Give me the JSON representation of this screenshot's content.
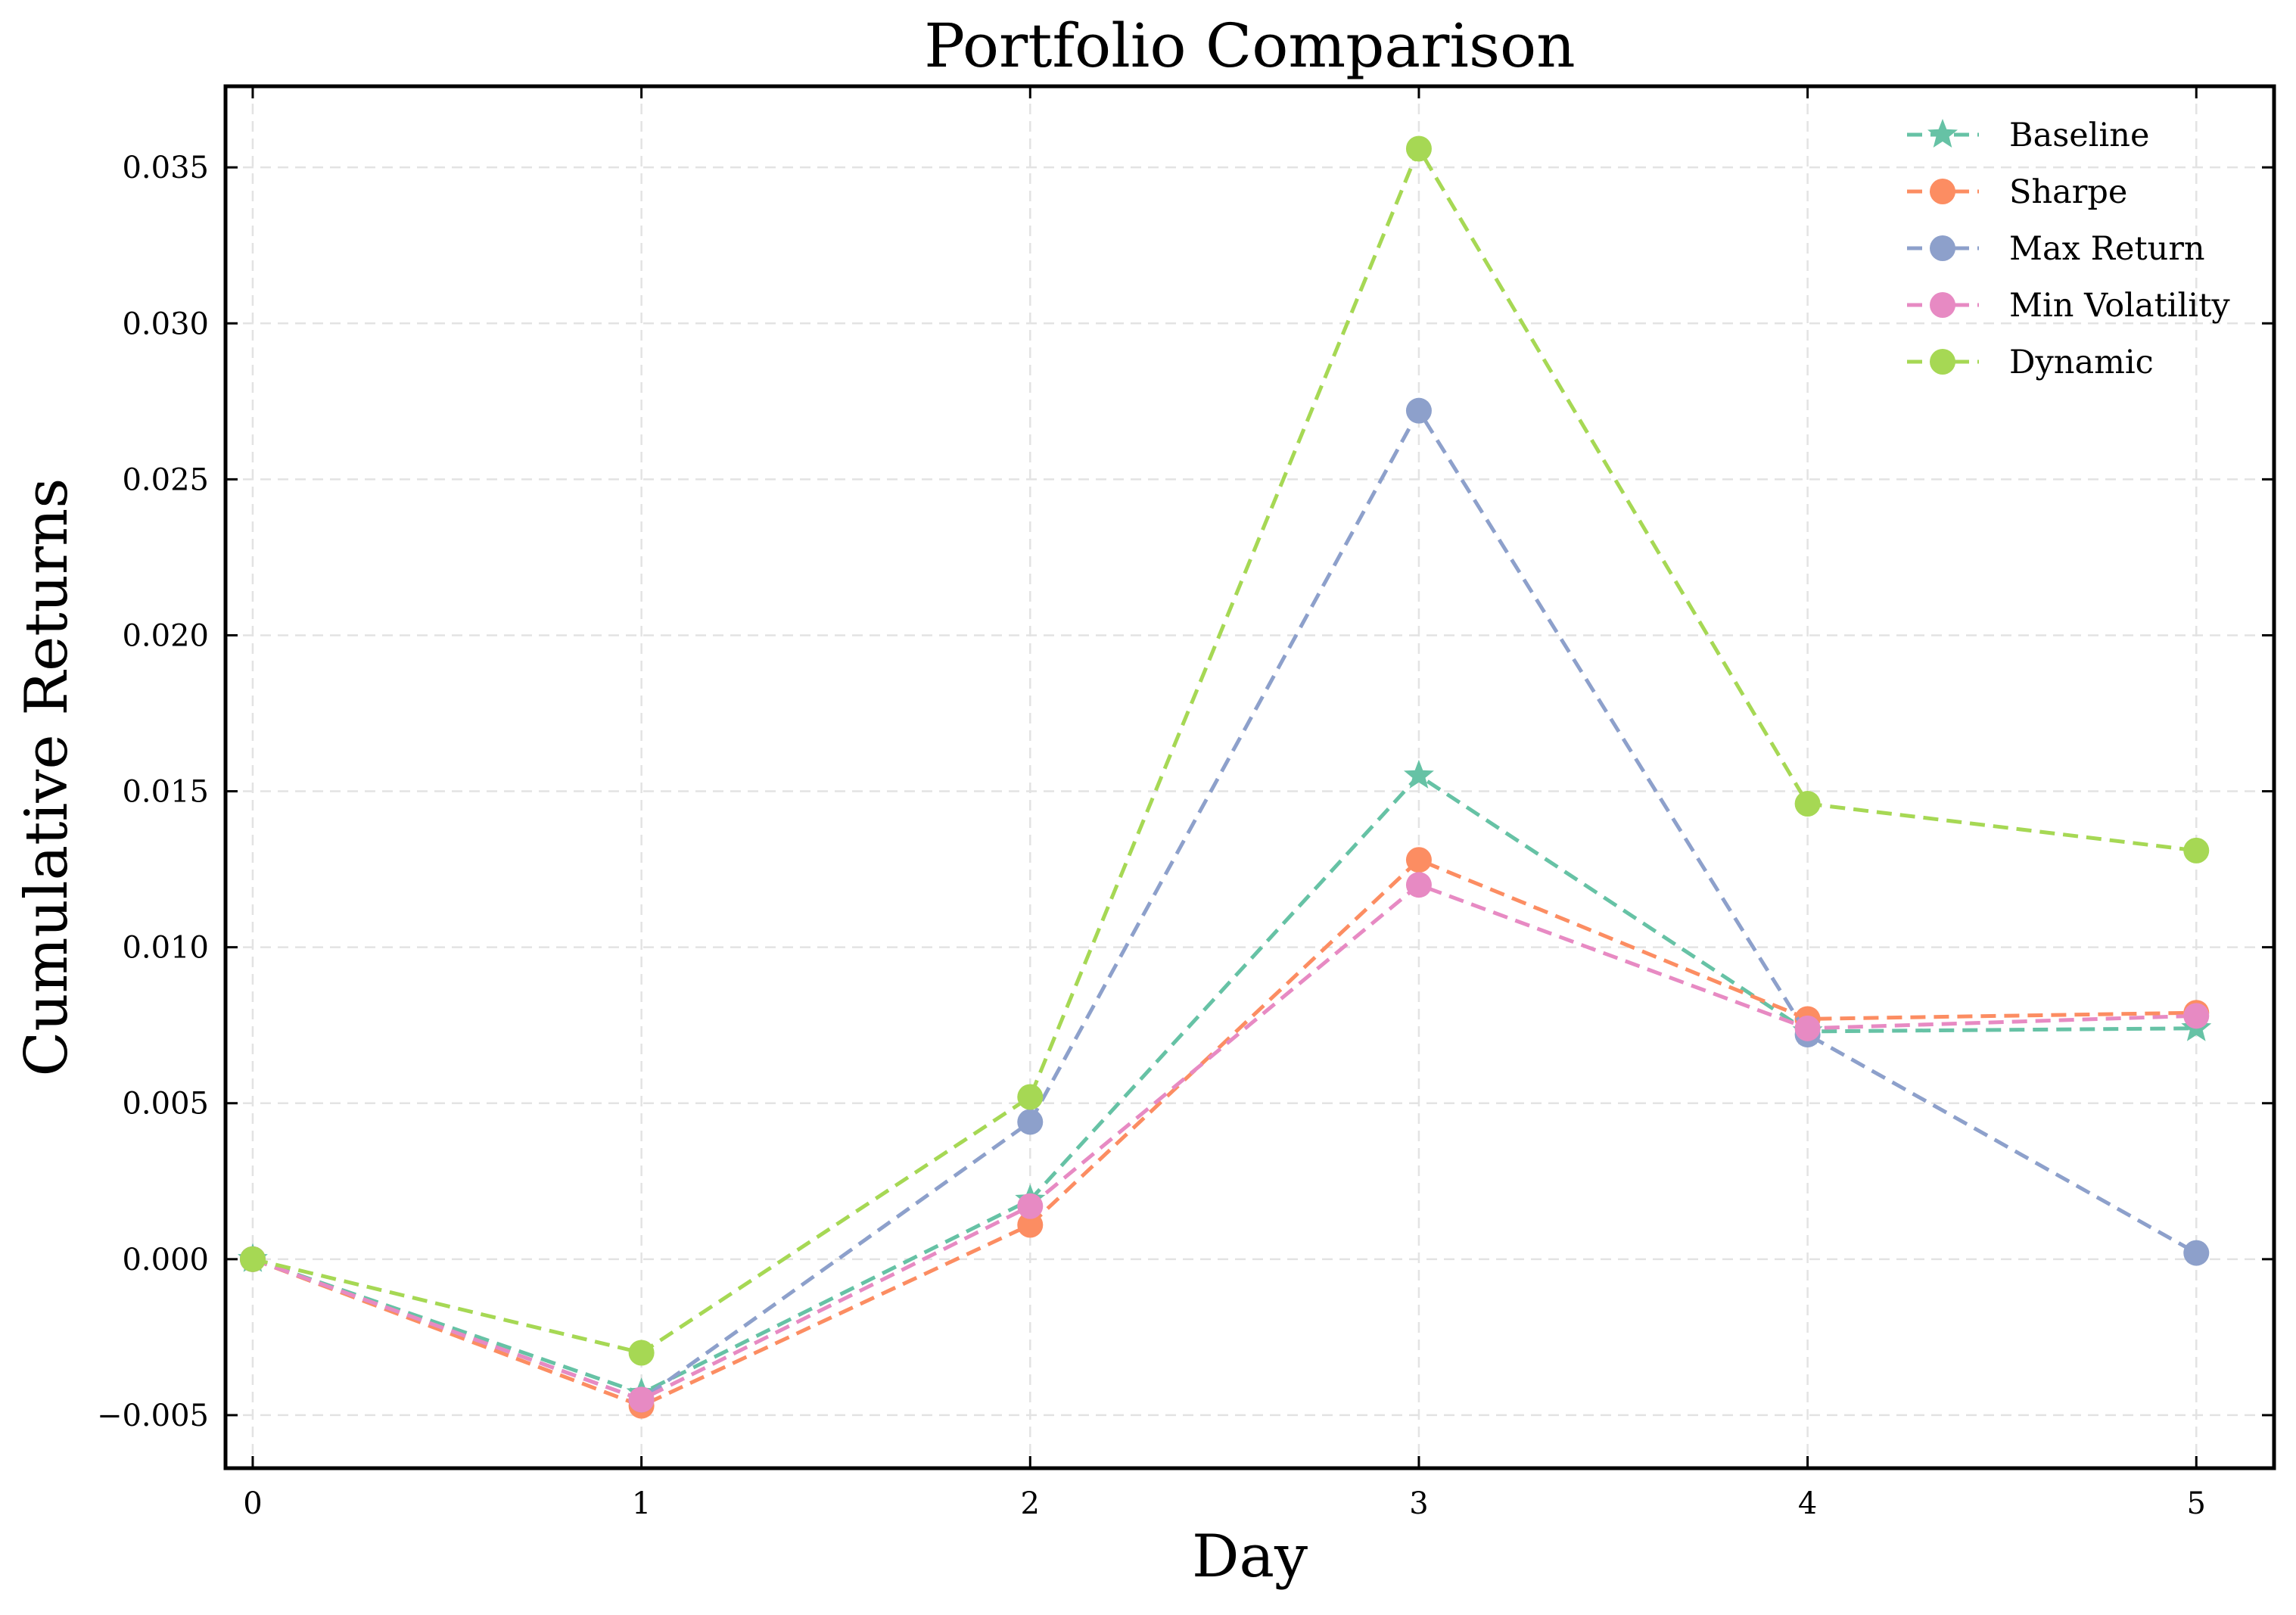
{
  "chart_data": {
    "type": "line",
    "title": "Portfolio Comparison",
    "xlabel": "Day",
    "ylabel": "Cumulative Returns",
    "x": [
      0,
      1,
      2,
      3,
      4,
      5
    ],
    "xticks": [
      "0",
      "1",
      "2",
      "3",
      "4",
      "5"
    ],
    "xlim": [
      -0.07,
      5.2
    ],
    "ylim": [
      -0.0067,
      0.0376
    ],
    "yticks": [
      -0.005,
      0.0,
      0.005,
      0.01,
      0.015,
      0.02,
      0.025,
      0.03,
      0.035
    ],
    "ytick_labels": [
      "−0.005",
      "0.000",
      "0.005",
      "0.010",
      "0.015",
      "0.020",
      "0.025",
      "0.030",
      "0.035"
    ],
    "grid": true,
    "legend_position": "top-right",
    "line_style": "dashed",
    "series": [
      {
        "name": "Baseline",
        "color": "#66c2a5",
        "marker": "star",
        "values": [
          0.0,
          -0.0043,
          0.0019,
          0.0155,
          0.0073,
          0.0074
        ]
      },
      {
        "name": "Sharpe",
        "color": "#fc8d62",
        "marker": "circle",
        "values": [
          0.0,
          -0.0047,
          0.0011,
          0.0128,
          0.0077,
          0.0079
        ]
      },
      {
        "name": "Max Return",
        "color": "#8da0cb",
        "marker": "circle",
        "values": [
          0.0,
          -0.0045,
          0.0044,
          0.0272,
          0.0072,
          0.0002
        ]
      },
      {
        "name": "Min Volatility",
        "color": "#e78ac3",
        "marker": "circle",
        "values": [
          0.0,
          -0.0045,
          0.0017,
          0.012,
          0.0074,
          0.0078
        ]
      },
      {
        "name": "Dynamic",
        "color": "#a6d854",
        "marker": "circle",
        "values": [
          0.0,
          -0.003,
          0.0052,
          0.0356,
          0.0146,
          0.0131
        ]
      }
    ]
  }
}
